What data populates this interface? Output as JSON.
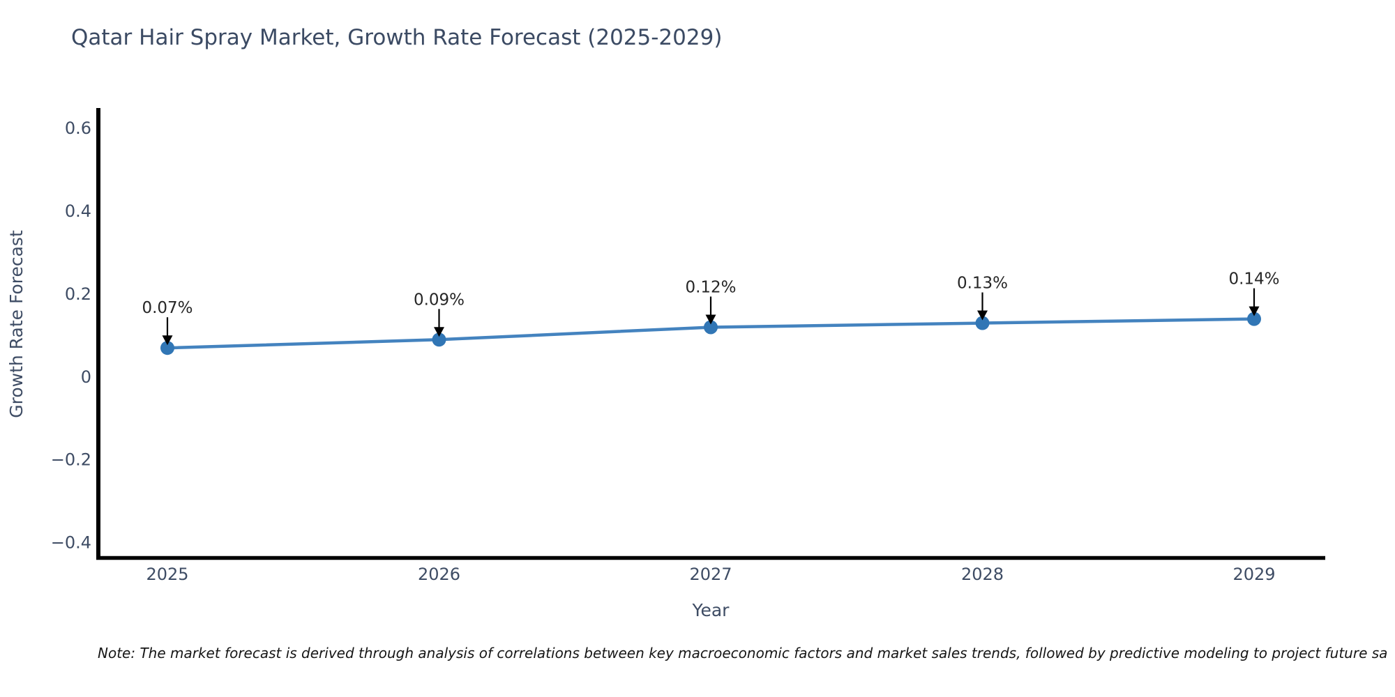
{
  "title": "Qatar Hair Spray Market, Growth Rate Forecast (2025-2029)",
  "note": "Note: The market forecast is derived through analysis of correlations between key macroeconomic factors and market sales trends, followed by predictive modeling to project future sa",
  "chart_data": {
    "type": "line",
    "x": [
      "2025",
      "2026",
      "2027",
      "2028",
      "2029"
    ],
    "series": [
      {
        "name": "Growth Rate Forecast",
        "values": [
          0.07,
          0.09,
          0.12,
          0.13,
          0.14
        ]
      }
    ],
    "point_labels": [
      "0.07%",
      "0.09%",
      "0.12%",
      "0.13%",
      "0.14%"
    ],
    "title": "Qatar Hair Spray Market, Growth Rate Forecast (2025-2029)",
    "xlabel": "Year",
    "ylabel": "Growth Rate Forecast",
    "ytick_values": [
      0.6,
      0.4,
      0.2,
      0,
      -0.2,
      -0.4
    ],
    "ytick_labels": [
      "0.6",
      "0.4",
      "0.2",
      "0",
      "−0.2",
      "−0.4"
    ],
    "ylim": [
      -0.436,
      0.649
    ],
    "grid": false,
    "legend": "none",
    "colors": {
      "line": "#4483bf",
      "marker": "#3176b5",
      "arrow": "#000000",
      "spine": "#000000",
      "axis_text": "#3e4c64",
      "annotation_text": "#262626",
      "background": "#ffffff"
    }
  }
}
